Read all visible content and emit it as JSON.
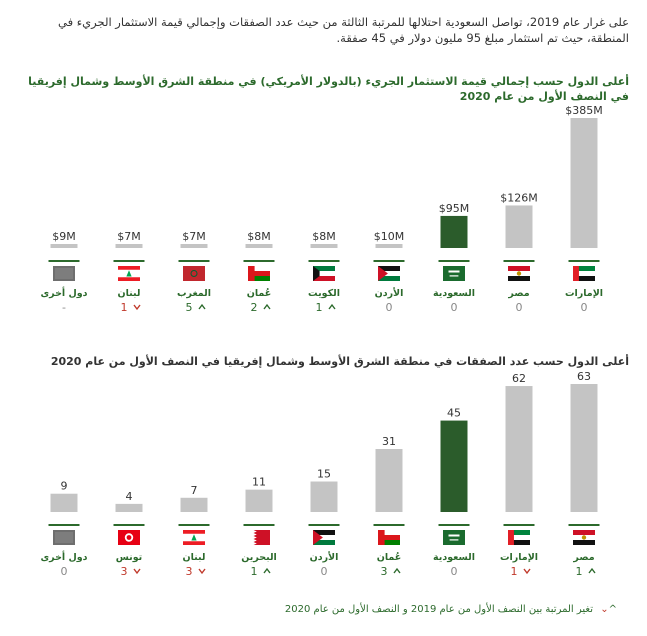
{
  "intro": "على غرار عام 2019، تواصل السعودية احتلالها للمرتبة الثالثة من حيث عدد الصفقات وإجمالي قيمة الاستثمار الجريء في المنطقة، حيث تم استثمار مبلغ 95 مليون دولار في 45 صفقة.",
  "legend_text": "تغير المرتبة بين النصف الأول من عام 2019 و النصف الأول من عام 2020",
  "colors": {
    "gray": "#c4c4c4",
    "highlight": "#2b5c2b",
    "green": "#2c6a2c",
    "red": "#c0392b"
  },
  "chart_data": [
    {
      "type": "bar",
      "title": "أعلى الدول حسب إجمالي قيمة الاستثمار الجريء (بالدولار الأمريكي) في منطقة الشرق الأوسط وشمال إفريقيا في النصف الأول من عام 2020",
      "categories": [
        "الإمارات",
        "مصر",
        "السعودية",
        "الأردن",
        "الكويت",
        "عُمان",
        "المغرب",
        "لبنان",
        "دول أخرى"
      ],
      "flags": [
        "uae",
        "egypt",
        "saudi",
        "jordan",
        "kuwait",
        "oman",
        "morocco",
        "lebanon",
        "other"
      ],
      "values": [
        385,
        126,
        95,
        10,
        8,
        8,
        7,
        7,
        9
      ],
      "labels": [
        "$385M",
        "$126M",
        "$95M",
        "$10M",
        "$8M",
        "$8M",
        "$7M",
        "$7M",
        "$9M"
      ],
      "rank_change": [
        "0",
        "0",
        "0",
        "0",
        "1",
        "2",
        "5",
        "1",
        "-"
      ],
      "rank_dir": [
        "none",
        "none",
        "none",
        "none",
        "up",
        "up",
        "up",
        "down",
        "none"
      ],
      "highlight": 2,
      "ylim": [
        0,
        385
      ]
    },
    {
      "type": "bar",
      "title": "أعلى الدول حسب عدد الصفقات في منطقة الشرق الأوسط وشمال إفريقيا في النصف الأول من عام 2020",
      "categories": [
        "مصر",
        "الإمارات",
        "السعودية",
        "عُمان",
        "الأردن",
        "البحرين",
        "لبنان",
        "تونس",
        "دول أخرى"
      ],
      "flags": [
        "egypt",
        "uae",
        "saudi",
        "oman",
        "jordan",
        "bahrain",
        "lebanon",
        "tunisia",
        "other"
      ],
      "values": [
        63,
        62,
        45,
        31,
        15,
        11,
        7,
        4,
        9
      ],
      "labels": [
        "63",
        "62",
        "45",
        "31",
        "15",
        "11",
        "7",
        "4",
        "9"
      ],
      "rank_change": [
        "1",
        "1",
        "0",
        "3",
        "0",
        "1",
        "3",
        "3",
        "0"
      ],
      "rank_dir": [
        "up",
        "down",
        "none",
        "up",
        "none",
        "up",
        "down",
        "down",
        "none"
      ],
      "highlight": 2,
      "ylim": [
        0,
        63
      ]
    }
  ]
}
